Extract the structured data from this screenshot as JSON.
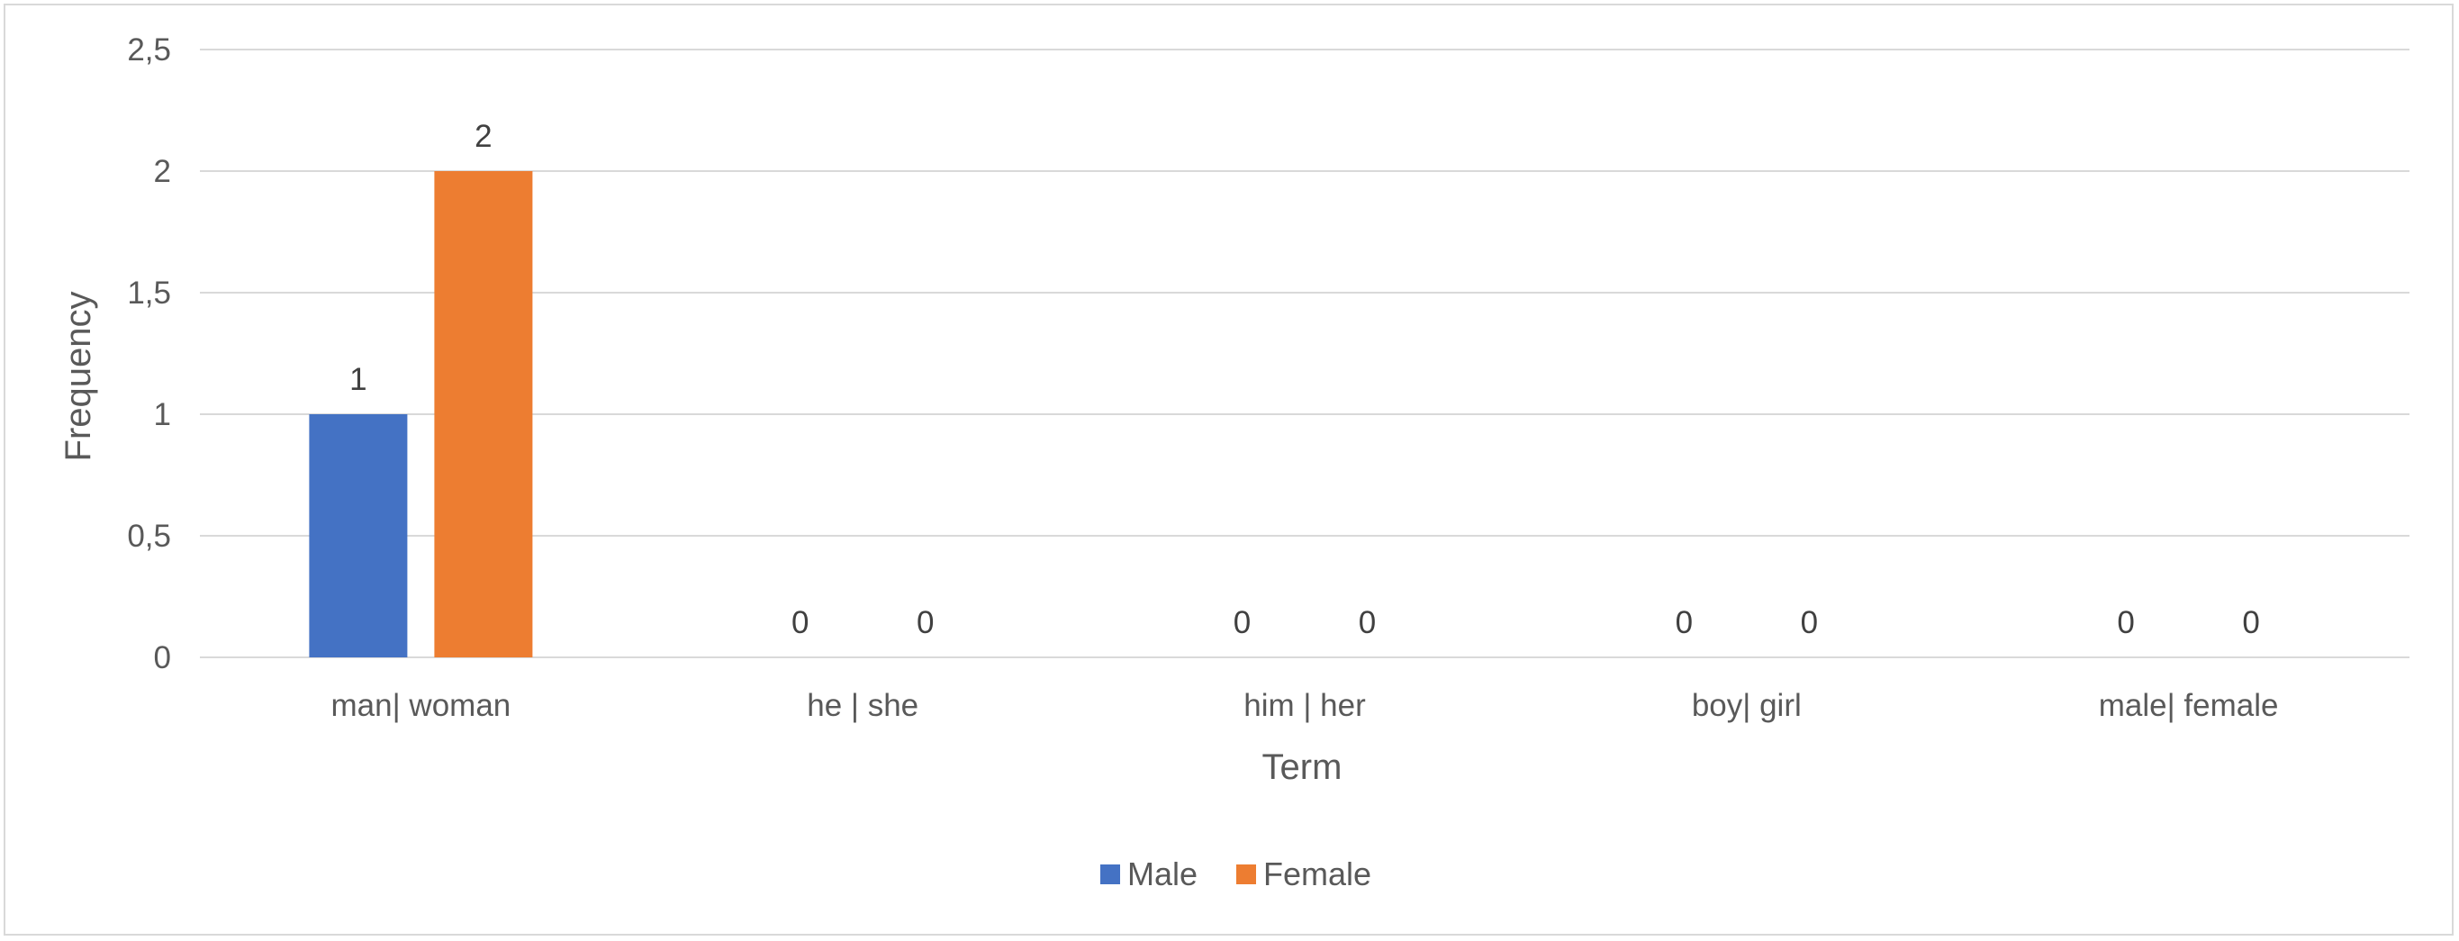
{
  "chart_data": {
    "type": "bar",
    "categories": [
      "man| woman",
      "he | she",
      "him | her",
      "boy| girl",
      "male| female"
    ],
    "series": [
      {
        "name": "Male",
        "values": [
          1,
          0,
          0,
          0,
          0
        ],
        "color": "#4472C4"
      },
      {
        "name": "Female",
        "values": [
          2,
          0,
          0,
          0,
          0
        ],
        "color": "#ED7D31"
      }
    ],
    "xlabel": "Term",
    "ylabel": "Frequency",
    "ylim": [
      0,
      2.5
    ],
    "y_ticks": [
      "0",
      "0,5",
      "1",
      "1,5",
      "2",
      "2,5"
    ],
    "data_labels": [
      [
        "1",
        "0",
        "0",
        "0",
        "0"
      ],
      [
        "2",
        "0",
        "0",
        "0",
        "0"
      ]
    ],
    "grid": true,
    "legend_position": "bottom",
    "gridline_color": "#d9d9d9"
  }
}
